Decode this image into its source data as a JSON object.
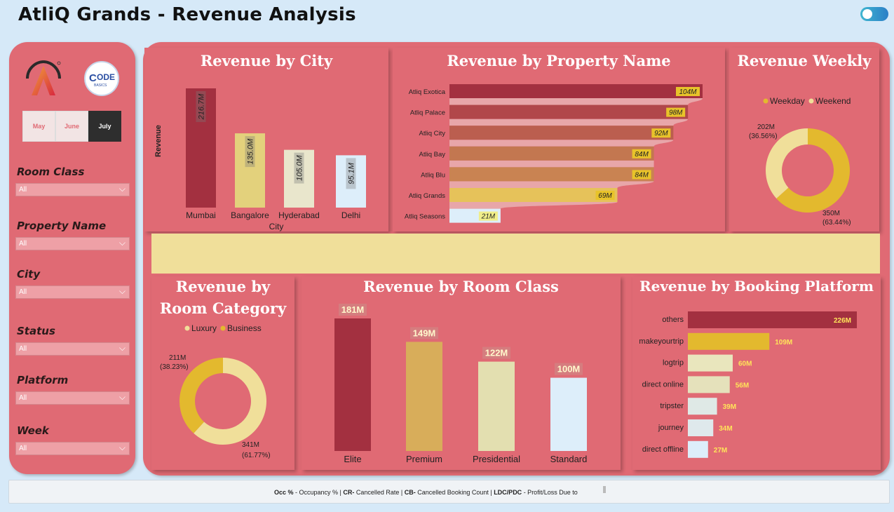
{
  "header": {
    "title": "AtliQ Grands - Revenue Analysis"
  },
  "sidebar": {
    "logo_code": "ODE",
    "logo_code_prefix": "C",
    "logo_code_sub": "BASICS",
    "months": [
      {
        "label": "May",
        "selected": false
      },
      {
        "label": "June",
        "selected": false
      },
      {
        "label": "July",
        "selected": true
      }
    ],
    "filters": [
      {
        "label": "Room Class",
        "value": "All"
      },
      {
        "label": "Property Name",
        "value": "All"
      },
      {
        "label": "City",
        "value": "All"
      },
      {
        "label": "Status",
        "value": "All"
      },
      {
        "label": "Platform",
        "value": "All"
      },
      {
        "label": "Week",
        "value": "All"
      }
    ]
  },
  "cards": {
    "city": {
      "title": "Revenue by City"
    },
    "property": {
      "title": "Revenue by Property Name"
    },
    "weekly": {
      "title": "Revenue Weekly"
    },
    "room_category": {
      "title_line1": "Revenue by",
      "title_line2": "Room Category"
    },
    "room_class": {
      "title": "Revenue by Room Class"
    },
    "platform": {
      "title": "Revenue by Booking Platform"
    }
  },
  "chart_data": [
    {
      "id": "city",
      "type": "bar",
      "title": "Revenue by City",
      "xlabel": "City",
      "ylabel": "Revenue",
      "categories": [
        "Mumbai",
        "Bangalore",
        "Hyderabad",
        "Delhi"
      ],
      "values": [
        216.7,
        135.0,
        105.0,
        95.1
      ],
      "labels": [
        "216.7M",
        "135.0M",
        "105.0M",
        "95.1M"
      ],
      "colors": [
        "#a33040",
        "#e3d17c",
        "#e9e6cc",
        "#ddeefa"
      ]
    },
    {
      "id": "property",
      "type": "bar",
      "orientation": "horizontal",
      "title": "Revenue by Property Name",
      "categories": [
        "Atliq Exotica",
        "Atliq Palace",
        "Atliq City",
        "Atliq Bay",
        "Atliq Blu",
        "Atliq Grands",
        "Atliq Seasons"
      ],
      "values": [
        104,
        98,
        92,
        84,
        84,
        69,
        21
      ],
      "labels": [
        "104M",
        "98M",
        "92M",
        "84M",
        "84M",
        "69M",
        "21M"
      ],
      "colors": [
        "#a33040",
        "#b1474a",
        "#bb5e4f",
        "#c37750",
        "#c98352",
        "#e6c25a",
        "#ddeefa"
      ]
    },
    {
      "id": "weekly",
      "type": "pie",
      "title": "Revenue Weekly",
      "legend": [
        "Weekday",
        "Weekend"
      ],
      "values": [
        350,
        202
      ],
      "slice_labels": [
        "350M",
        "202M"
      ],
      "percent_labels": [
        "(63.44%)",
        "(36.56%)"
      ],
      "colors": [
        "#e3b92e",
        "#f0df9a"
      ]
    },
    {
      "id": "room_category",
      "type": "pie",
      "title": "Revenue by Room Category",
      "legend": [
        "Luxury",
        "Business"
      ],
      "values": [
        341,
        211
      ],
      "slice_labels": [
        "341M",
        "211M"
      ],
      "percent_labels": [
        "(61.77%)",
        "(38.23%)"
      ],
      "colors": [
        "#f0df9a",
        "#e3b92e"
      ]
    },
    {
      "id": "room_class",
      "type": "bar",
      "title": "Revenue by Room Class",
      "categories": [
        "Elite",
        "Premium",
        "Presidential",
        "Standard"
      ],
      "values": [
        181,
        149,
        122,
        100
      ],
      "labels": [
        "181M",
        "149M",
        "122M",
        "100M"
      ],
      "colors": [
        "#a33040",
        "#d8ad5a",
        "#e3dfb0",
        "#ddeefa"
      ]
    },
    {
      "id": "platform",
      "type": "bar",
      "orientation": "horizontal",
      "title": "Revenue by Booking Platform",
      "categories": [
        "others",
        "makeyourtrip",
        "logtrip",
        "direct online",
        "tripster",
        "journey",
        "direct offline"
      ],
      "values": [
        226,
        109,
        60,
        56,
        39,
        34,
        27
      ],
      "labels": [
        "226M",
        "109M",
        "60M",
        "56M",
        "39M",
        "34M",
        "27M"
      ],
      "colors": [
        "#a33040",
        "#e3b92e",
        "#e9e6bd",
        "#e5e1bb",
        "#dfe9e6",
        "#dfe9ec",
        "#ddeefa"
      ]
    }
  ],
  "footer": {
    "segments": [
      {
        "bold": "Occ %",
        "text": " - Occupancy % | "
      },
      {
        "bold": "CR-",
        "text": " Cancelled Rate | "
      },
      {
        "bold": "CB-",
        "text": " Cancelled Booking Count | "
      },
      {
        "bold": "LDC/PDC",
        "text": " - Profit/Loss Due to "
      }
    ]
  }
}
